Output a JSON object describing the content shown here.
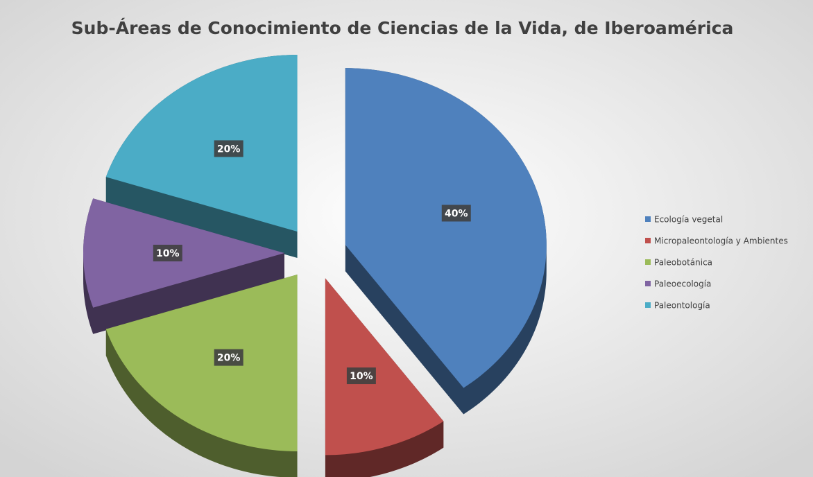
{
  "chart_data": {
    "type": "pie",
    "title": "Sub-Áreas de Conocimiento de Ciencias de la Vida, de Iberoamérica",
    "categories": [
      "Ecología vegetal",
      "Micropaleontología y Ambientes",
      "Paleobotánica",
      "Paleoecología",
      "Paleontología"
    ],
    "values": [
      40,
      10,
      20,
      10,
      20
    ],
    "value_labels": [
      "40%",
      "10%",
      "20%",
      "10%",
      "20%"
    ],
    "colors": [
      "#4f81bd",
      "#c0504d",
      "#9bbb59",
      "#8064a2",
      "#4bacc6"
    ],
    "legend": "right"
  }
}
